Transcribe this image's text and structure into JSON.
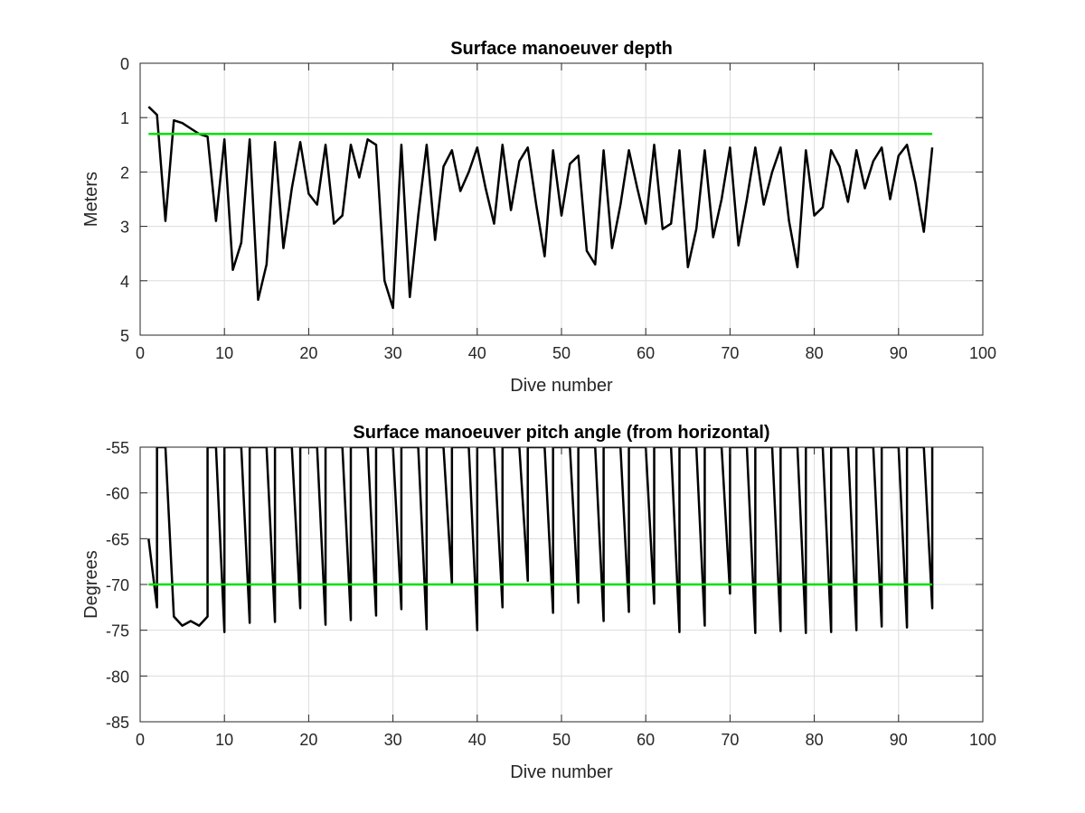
{
  "chart_data": [
    {
      "type": "line",
      "title": "Surface manoeuver depth",
      "xlabel": "Dive number",
      "ylabel": "Meters",
      "xlim": [
        0,
        100
      ],
      "ylim": [
        0,
        5
      ],
      "y_reversed": true,
      "grid": true,
      "xticks": [
        0,
        10,
        20,
        30,
        40,
        50,
        60,
        70,
        80,
        90,
        100
      ],
      "yticks": [
        0,
        1,
        2,
        3,
        4,
        5
      ],
      "series": [
        {
          "color": "#000000",
          "x": [
            1,
            2,
            3,
            4,
            5,
            6,
            7,
            8,
            9,
            10,
            11,
            12,
            13,
            14,
            15,
            16,
            17,
            18,
            19,
            20,
            21,
            22,
            23,
            24,
            25,
            26,
            27,
            28,
            29,
            30,
            31,
            32,
            33,
            34,
            35,
            36,
            37,
            38,
            39,
            40,
            41,
            42,
            43,
            44,
            45,
            46,
            47,
            48,
            49,
            50,
            51,
            52,
            53,
            54,
            55,
            56,
            57,
            58,
            59,
            60,
            61,
            62,
            63,
            64,
            65,
            66,
            67,
            68,
            69,
            70,
            71,
            72,
            73,
            74,
            75,
            76,
            77,
            78,
            79,
            80,
            81,
            82,
            83,
            84,
            85,
            86,
            87,
            88,
            89,
            90,
            91,
            92,
            93,
            94
          ],
          "values": [
            0.8,
            0.95,
            2.9,
            1.05,
            1.1,
            1.2,
            1.3,
            1.35,
            2.9,
            1.4,
            3.8,
            3.3,
            1.4,
            4.35,
            3.7,
            1.45,
            3.4,
            2.3,
            1.45,
            2.4,
            2.6,
            1.5,
            2.95,
            2.8,
            1.5,
            2.1,
            1.4,
            1.5,
            4.0,
            4.5,
            1.5,
            4.3,
            2.8,
            1.5,
            3.25,
            1.9,
            1.6,
            2.35,
            2.0,
            1.55,
            2.3,
            2.95,
            1.5,
            2.7,
            1.8,
            1.55,
            2.6,
            3.55,
            1.6,
            2.8,
            1.85,
            1.7,
            3.45,
            3.7,
            1.6,
            3.4,
            2.6,
            1.6,
            2.3,
            2.95,
            1.5,
            3.05,
            2.95,
            1.6,
            3.75,
            3.05,
            1.6,
            3.2,
            2.5,
            1.55,
            3.35,
            2.5,
            1.55,
            2.6,
            2.0,
            1.55,
            2.9,
            3.75,
            1.6,
            2.8,
            2.65,
            1.6,
            1.9,
            2.55,
            1.6,
            2.3,
            1.8,
            1.55,
            2.5,
            1.7,
            1.5,
            2.2,
            3.1,
            1.55
          ]
        },
        {
          "color": "#00e000",
          "x": [
            1,
            94
          ],
          "values": [
            1.3,
            1.3
          ]
        }
      ]
    },
    {
      "type": "line",
      "title": "Surface manoeuver pitch angle (from horizontal)",
      "xlabel": "Dive number",
      "ylabel": "Degrees",
      "xlim": [
        0,
        100
      ],
      "ylim": [
        -85,
        -55
      ],
      "grid": true,
      "xticks": [
        0,
        10,
        20,
        30,
        40,
        50,
        60,
        70,
        80,
        90,
        100
      ],
      "yticks": [
        -85,
        -80,
        -75,
        -70,
        -65,
        -60,
        -55
      ],
      "series": [
        {
          "color": "#000000",
          "x": [
            1,
            2,
            2,
            3,
            3,
            4,
            5,
            6,
            7,
            8,
            8,
            8,
            9,
            10,
            10,
            11,
            12,
            13,
            13,
            14,
            15,
            16,
            16,
            17,
            18,
            19,
            19,
            20,
            21,
            22,
            22,
            23,
            24,
            25,
            25,
            26,
            27,
            28,
            28,
            29,
            30,
            31,
            31,
            32,
            33,
            34,
            34,
            35,
            36,
            37,
            37,
            38,
            39,
            40,
            40,
            41,
            42,
            43,
            43,
            44,
            45,
            46,
            46,
            47,
            48,
            49,
            49,
            50,
            51,
            52,
            52,
            53,
            54,
            55,
            55,
            56,
            57,
            58,
            58,
            59,
            60,
            61,
            61,
            62,
            63,
            64,
            64,
            65,
            66,
            67,
            67,
            68,
            69,
            70,
            70,
            71,
            72,
            73,
            73,
            74,
            75,
            76,
            76,
            77,
            78,
            79,
            79,
            80,
            81,
            82,
            82,
            83,
            84,
            85,
            85,
            86,
            87,
            88,
            88,
            89,
            90,
            91,
            91,
            92,
            93,
            94,
            94
          ],
          "values": [
            -65,
            -72.5,
            -55,
            -55,
            -55,
            -73.5,
            -74.5,
            -74,
            -74.5,
            -73.5,
            -55,
            -55,
            -55,
            -75.2,
            -55,
            -55,
            -55,
            -74.2,
            -55,
            -55,
            -55,
            -74.1,
            -55,
            -55,
            -55,
            -72.6,
            -55,
            -55,
            -55,
            -74.4,
            -55,
            -55,
            -55,
            -73.9,
            -55,
            -55,
            -55,
            -73.4,
            -55,
            -55,
            -55,
            -72.7,
            -55,
            -55,
            -55,
            -74.9,
            -55,
            -55,
            -55,
            -70,
            -55,
            -55,
            -55,
            -75,
            -55,
            -55,
            -55,
            -72.5,
            -55,
            -55,
            -55,
            -69.6,
            -55,
            -55,
            -55,
            -73.1,
            -55,
            -55,
            -55,
            -72,
            -55,
            -55,
            -55,
            -74,
            -55,
            -55,
            -55,
            -73,
            -55,
            -55,
            -55,
            -72.1,
            -55,
            -55,
            -55,
            -75.2,
            -55,
            -55,
            -55,
            -74.5,
            -55,
            -55,
            -55,
            -71,
            -55,
            -55,
            -55,
            -75.3,
            -55,
            -55,
            -55,
            -75.1,
            -55,
            -55,
            -55,
            -75.3,
            -55,
            -55,
            -55,
            -75.2,
            -55,
            -55,
            -55,
            -75,
            -55,
            -55,
            -55,
            -74.6,
            -55,
            -55,
            -55,
            -74.7,
            -55,
            -55,
            -55,
            -72.6,
            -55
          ]
        },
        {
          "color": "#00e000",
          "x": [
            1,
            94
          ],
          "values": [
            -70,
            -70
          ]
        }
      ]
    }
  ]
}
